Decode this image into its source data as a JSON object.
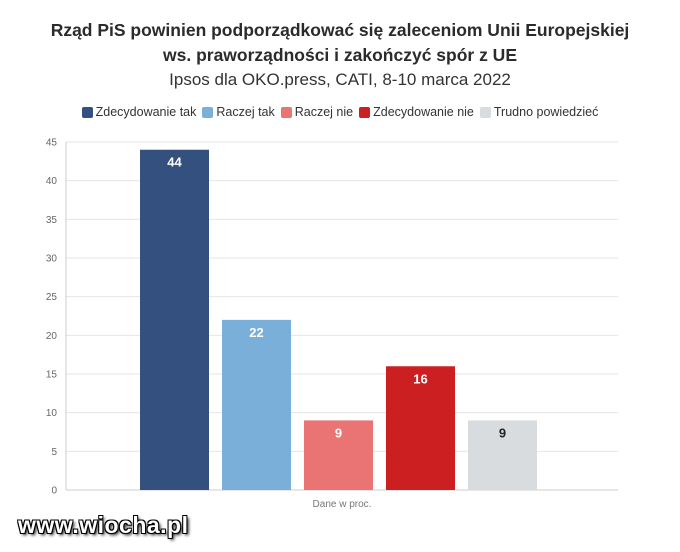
{
  "chart_data": {
    "type": "bar",
    "title_line1": "Rząd PiS powinien podporządkować się zaleceniom Unii Europejskiej",
    "title_line2": "ws. praworządności i zakończyć spór z UE",
    "subtitle": "Ipsos dla OKO.press, CATI, 8-10 marca 2022",
    "xlabel": "Dane w proc.",
    "ylabel": "",
    "ylim": [
      0,
      45
    ],
    "yticks": [
      0,
      5,
      10,
      15,
      20,
      25,
      30,
      35,
      40,
      45
    ],
    "grid": true,
    "legend_position": "top",
    "series": [
      {
        "name": "Zdecydowanie tak",
        "value": 44,
        "color": "#34507f",
        "label_color": "#ffffff"
      },
      {
        "name": "Raczej tak",
        "value": 22,
        "color": "#7aafd9",
        "label_color": "#ffffff"
      },
      {
        "name": "Raczej nie",
        "value": 9,
        "color": "#ea7474",
        "label_color": "#ffffff"
      },
      {
        "name": "Zdecydowanie nie",
        "value": 16,
        "color": "#cc1f22",
        "label_color": "#ffffff"
      },
      {
        "name": "Trudno powiedzieć",
        "value": 9,
        "color": "#d9dcde",
        "label_color": "#222222"
      }
    ]
  },
  "watermark": "www.wiocha.pl"
}
